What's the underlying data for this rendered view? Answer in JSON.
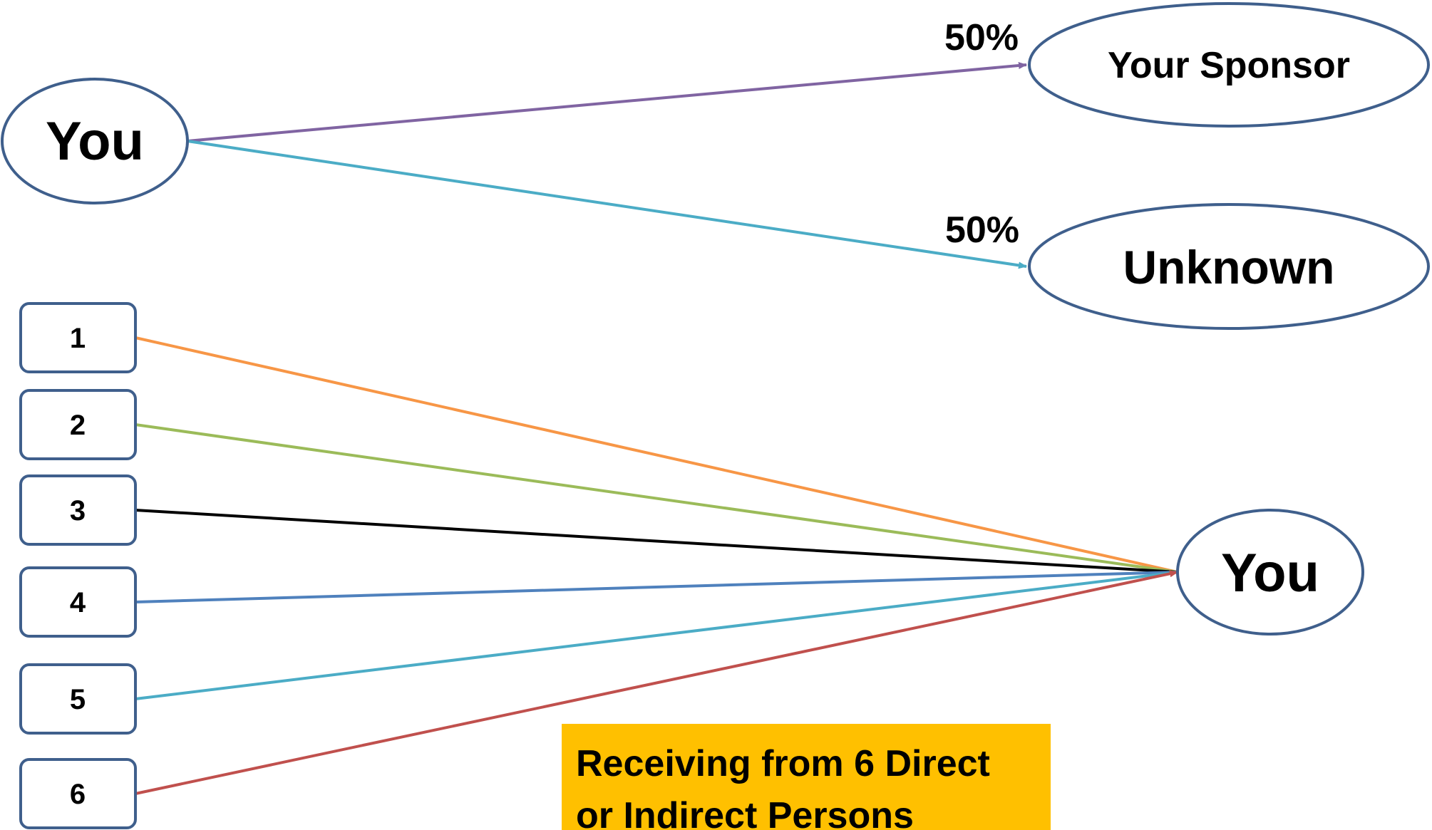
{
  "colors": {
    "node_border": "#3f5f8c",
    "sponsor_arrow": "#8064a2",
    "unknown_arrow": "#4bacc6",
    "line_1": "#f79646",
    "line_2": "#9bbb59",
    "line_3": "#000000",
    "line_4": "#4f81bd",
    "line_5": "#4bacc6",
    "line_6": "#c0504d",
    "note_background": "#ffc000"
  },
  "top": {
    "source_label": "You",
    "targets": [
      {
        "label": "Your Sponsor",
        "percent": "50%"
      },
      {
        "label": "Unknown",
        "percent": "50%"
      }
    ]
  },
  "bottom": {
    "sources": [
      "1",
      "2",
      "3",
      "4",
      "5",
      "6"
    ],
    "target_label": "You"
  },
  "note": {
    "text": "Receiving from 6 Direct\nor Indirect Persons"
  }
}
